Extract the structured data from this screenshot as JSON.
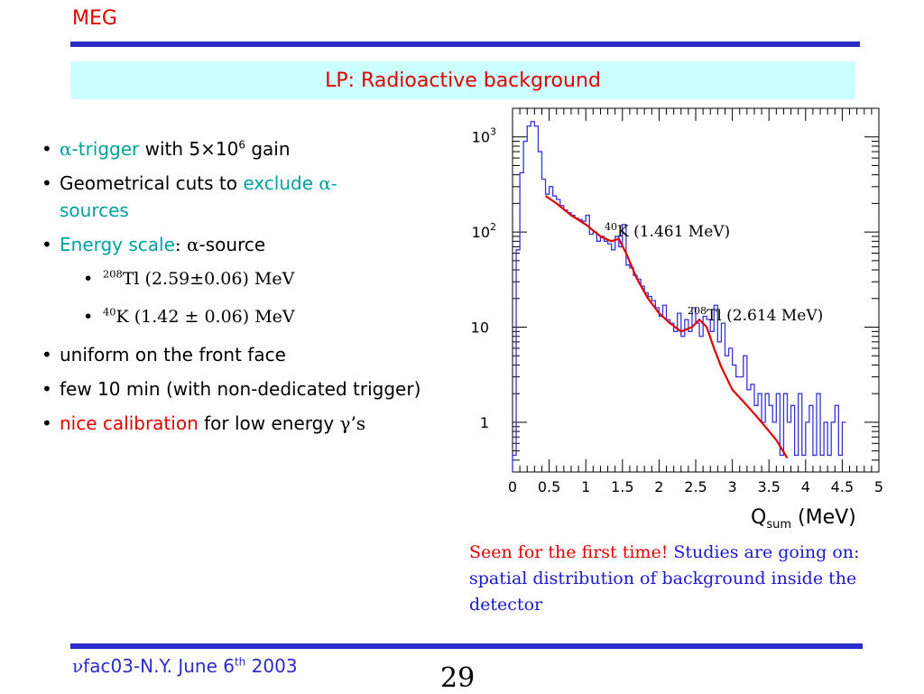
{
  "header": {
    "label": "MEG",
    "title": "LP: Radioactive background"
  },
  "bullets": {
    "b1_alpha": "α",
    "b1_trigger": "-trigger",
    "b1_rest": " with 5×10",
    "b1_sup": "6",
    "b1_gain": " gain",
    "b2_text": "Geometrical cuts to ",
    "b2_exclude": "exclude ",
    "b2_alpha": "α-",
    "b2_sources": "sources",
    "b3_energy": "Energy scale",
    "b3_colon": ": ",
    "b3_alpha": "α",
    "b3_source": "-source",
    "s1_sup": "208",
    "s1_text": "Tl  (2.59±0.06) MeV",
    "s2_sup": "40",
    "s2_text": "K (1.42 ± 0.06) MeV",
    "b4_text": "uniform on the front face",
    "b5_text": "few 10 min (with non-dedicated trigger)",
    "b6_nice": "nice calibration",
    "b6_rest": " for low energy ",
    "b6_gamma": "γ’s"
  },
  "chart_data": {
    "type": "line",
    "x_label": "Q",
    "x_label_sub": "sum",
    "x_label_unit": " (MeV)",
    "xlim": [
      0,
      5
    ],
    "ylim": [
      0.3,
      2000
    ],
    "y_scale": "log",
    "x_ticks": [
      "0",
      "0.5",
      "1",
      "1.5",
      "2",
      "2.5",
      "3",
      "3.5",
      "4",
      "4.5",
      "5"
    ],
    "y_ticks": [
      {
        "value": 1000,
        "base": "10",
        "exp": "3"
      },
      {
        "value": 100,
        "base": "10",
        "exp": "2"
      },
      {
        "value": 10,
        "base": "10",
        "exp": ""
      },
      {
        "value": 1,
        "base": "1",
        "exp": ""
      }
    ],
    "series": [
      {
        "role": "histogram",
        "color": "#3535d8",
        "x": [
          0.0,
          0.05,
          0.1,
          0.15,
          0.2,
          0.25,
          0.3,
          0.35,
          0.4,
          0.45,
          0.5,
          0.55,
          0.6,
          0.65,
          0.7,
          0.75,
          0.8,
          0.85,
          0.9,
          0.95,
          1.0,
          1.05,
          1.1,
          1.15,
          1.2,
          1.25,
          1.3,
          1.35,
          1.4,
          1.45,
          1.5,
          1.55,
          1.6,
          1.65,
          1.7,
          1.75,
          1.8,
          1.85,
          1.9,
          1.95,
          2.0,
          2.05,
          2.1,
          2.15,
          2.2,
          2.25,
          2.3,
          2.35,
          2.4,
          2.45,
          2.5,
          2.55,
          2.6,
          2.65,
          2.7,
          2.75,
          2.8,
          2.85,
          2.9,
          2.95,
          3.0,
          3.05,
          3.1,
          3.15,
          3.2,
          3.25,
          3.3,
          3.35,
          3.4,
          3.45,
          3.5,
          3.55,
          3.6,
          3.65,
          3.7,
          3.75,
          3.8,
          3.85,
          3.9,
          3.95,
          4.0,
          4.05,
          4.1,
          4.15,
          4.2,
          4.25,
          4.3,
          4.35,
          4.4,
          4.45,
          4.5
        ],
        "y": [
          0.45,
          65,
          420,
          900,
          1300,
          1450,
          1300,
          700,
          360,
          250,
          300,
          240,
          220,
          190,
          170,
          160,
          150,
          140,
          135,
          130,
          150,
          95,
          100,
          80,
          90,
          80,
          75,
          65,
          90,
          70,
          120,
          45,
          42,
          35,
          32,
          27,
          23,
          21,
          19,
          16,
          13,
          17,
          12,
          11,
          9,
          14,
          8,
          12,
          9,
          16,
          11,
          8,
          13,
          12,
          9,
          17,
          7,
          11,
          5,
          6,
          4,
          3,
          3,
          5,
          2.2,
          2.5,
          1.5,
          2,
          1,
          2,
          1.5,
          1,
          2,
          0.45,
          2,
          1,
          1.5,
          0.45,
          2,
          0.45,
          1,
          1.5,
          0.45,
          2,
          0.45,
          1,
          0.45,
          1,
          1.5,
          0.45,
          1
        ]
      },
      {
        "role": "fit",
        "color": "#e00000",
        "x": [
          0.45,
          0.6,
          0.8,
          1.0,
          1.2,
          1.35,
          1.45,
          1.55,
          1.7,
          1.85,
          2.0,
          2.15,
          2.3,
          2.45,
          2.55,
          2.65,
          2.75,
          2.85,
          3.0,
          3.2,
          3.4,
          3.6,
          3.75
        ],
        "y": [
          240,
          200,
          150,
          120,
          90,
          80,
          85,
          60,
          32,
          20,
          14,
          11,
          9,
          10,
          12,
          10,
          6,
          3.8,
          2.2,
          1.5,
          1.0,
          0.65,
          0.42
        ]
      }
    ],
    "annotations": [
      {
        "sup": "40",
        "text": "K (1.461 MeV)"
      },
      {
        "sup": "208",
        "text": "Tl (2.614 MeV)"
      }
    ]
  },
  "caption": {
    "red_part": "Seen for the first time",
    "exclam": "! ",
    "blue_part": "Studies are going on: spatial distribution of background inside the detector"
  },
  "footer": {
    "nu": "ν",
    "text": "fac03-N.Y. June 6",
    "sup": "th",
    "year": " 2003"
  },
  "page_number": "29",
  "colors": {
    "accent_red": "#e00000",
    "title_bg": "#ccffff",
    "rule_blue": "#2b2bc8",
    "teal": "#00a0a0",
    "text_blue": "#1a1ad0"
  }
}
